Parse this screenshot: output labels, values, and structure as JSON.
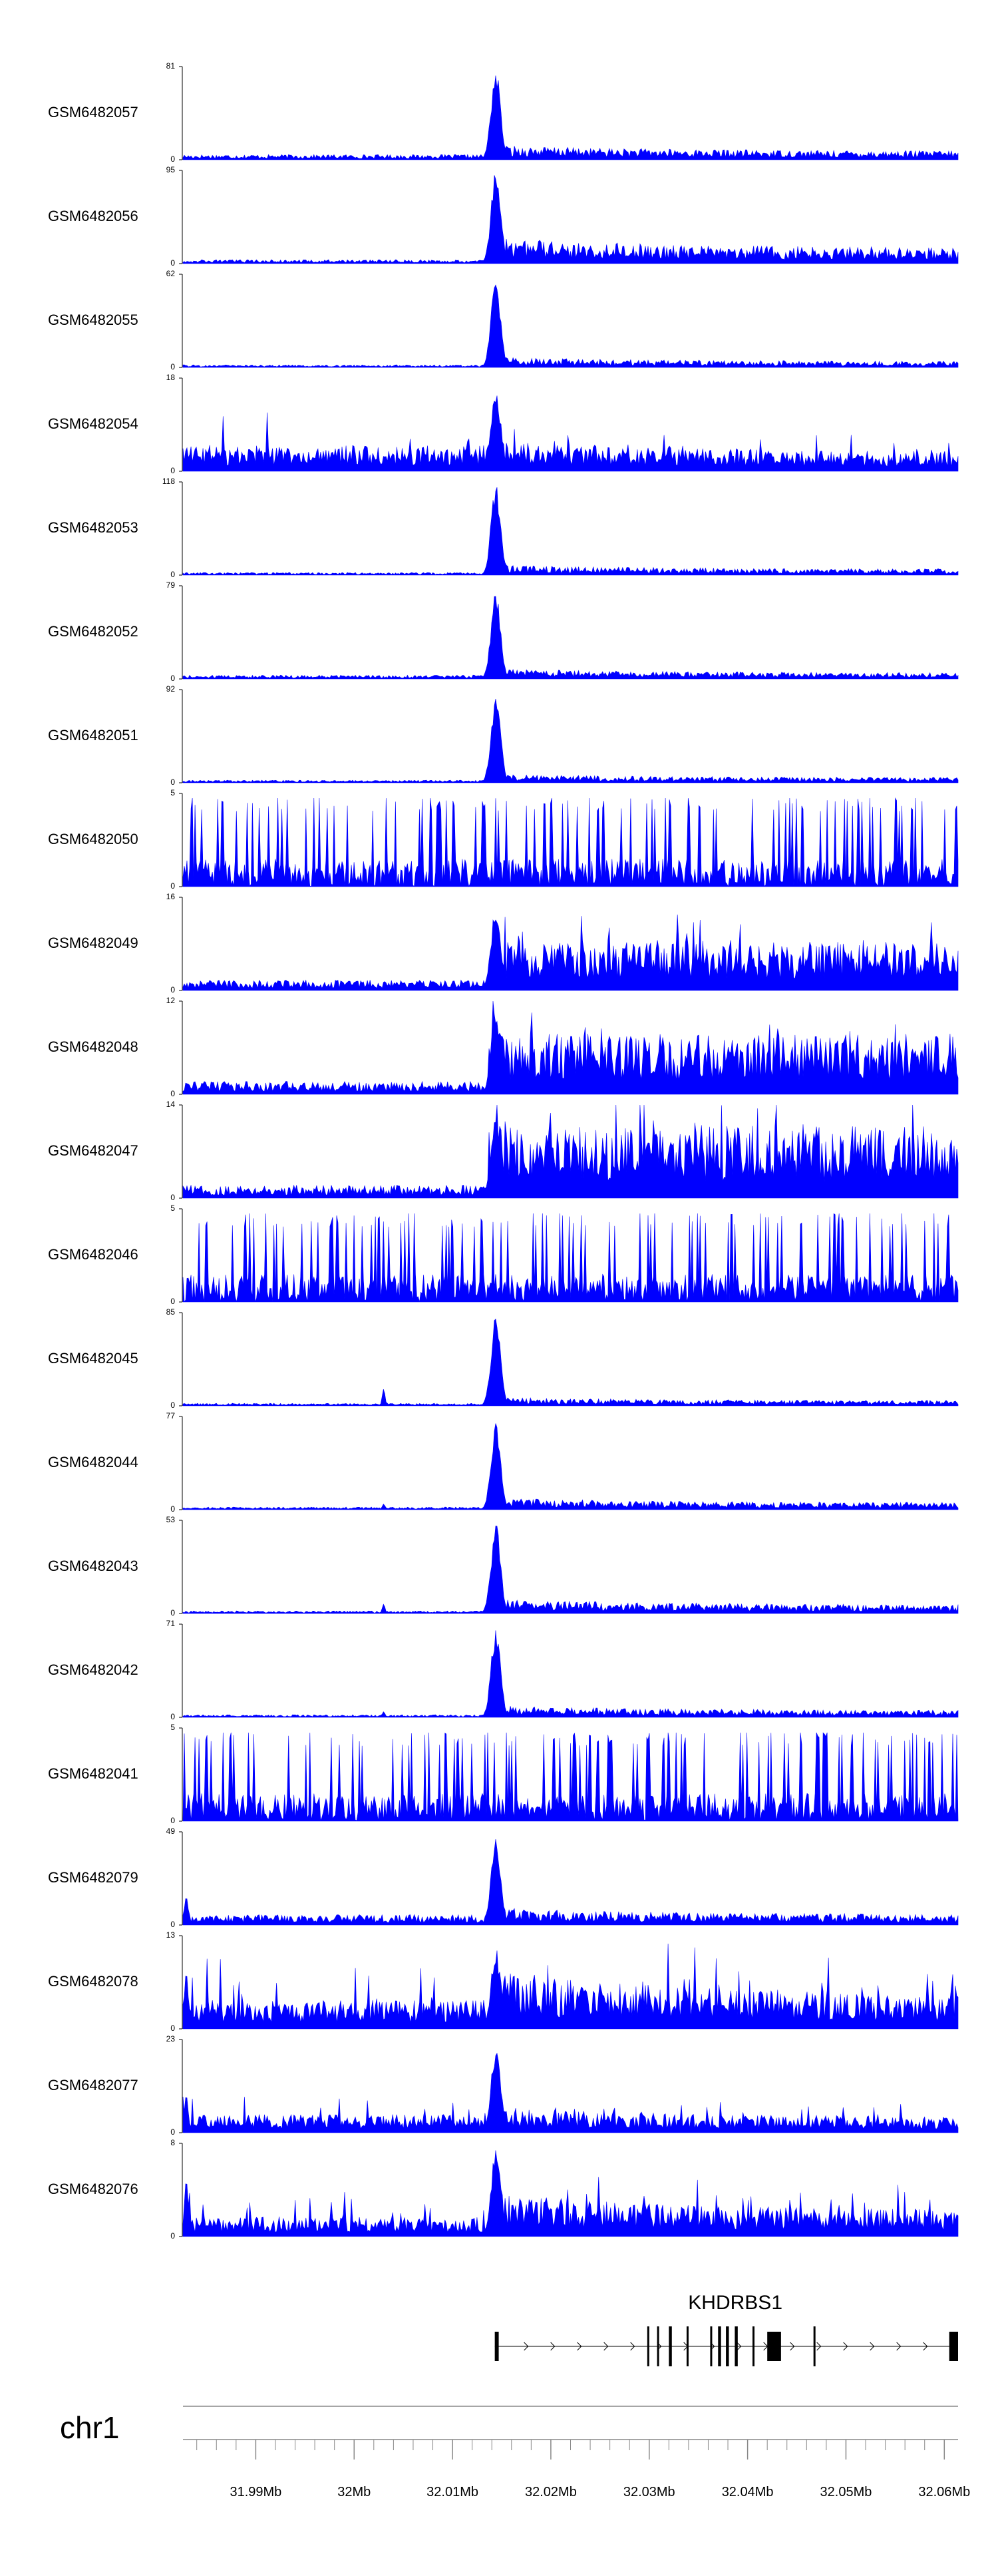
{
  "chart_data": {
    "type": "area",
    "region": {
      "chromosome": "chr1",
      "x_start_mb": 31.9826,
      "x_end_mb": 32.0614
    },
    "fill_color": "#0000ff",
    "tracks": [
      {
        "name": "GSM6482057",
        "ymax": 81,
        "ymin": 0,
        "profile": "peak",
        "peak_height": 1.0,
        "tail": 0.1,
        "upstream": 0.04
      },
      {
        "name": "GSM6482056",
        "ymax": 95,
        "ymin": 0,
        "profile": "peak",
        "peak_height": 1.0,
        "tail": 0.18,
        "upstream": 0.03
      },
      {
        "name": "GSM6482055",
        "ymax": 62,
        "ymin": 0,
        "profile": "peak",
        "peak_height": 0.97,
        "tail": 0.07,
        "upstream": 0.02
      },
      {
        "name": "GSM6482054",
        "ymax": 18,
        "ymin": 0,
        "profile": "noisy_peak",
        "peak_height": 0.95,
        "tail": 0.22,
        "upstream": 0.2
      },
      {
        "name": "GSM6482053",
        "ymax": 118,
        "ymin": 0,
        "profile": "peak",
        "peak_height": 0.98,
        "tail": 0.07,
        "upstream": 0.02
      },
      {
        "name": "GSM6482052",
        "ymax": 79,
        "ymin": 0,
        "profile": "peak",
        "peak_height": 0.96,
        "tail": 0.07,
        "upstream": 0.03
      },
      {
        "name": "GSM6482051",
        "ymax": 92,
        "ymin": 0,
        "profile": "peak",
        "peak_height": 0.97,
        "tail": 0.06,
        "upstream": 0.02
      },
      {
        "name": "GSM6482050",
        "ymax": 5,
        "ymin": 0,
        "profile": "noise",
        "peak_height": 0.9,
        "tail": 0.45,
        "upstream": 0.45
      },
      {
        "name": "GSM6482049",
        "ymax": 16,
        "ymin": 0,
        "profile": "step",
        "peak_height": 0.95,
        "tail": 0.35,
        "upstream": 0.08
      },
      {
        "name": "GSM6482048",
        "ymax": 12,
        "ymin": 0,
        "profile": "step",
        "peak_height": 0.95,
        "tail": 0.42,
        "upstream": 0.1
      },
      {
        "name": "GSM6482047",
        "ymax": 14,
        "ymin": 0,
        "profile": "step",
        "peak_height": 0.95,
        "tail": 0.5,
        "upstream": 0.1
      },
      {
        "name": "GSM6482046",
        "ymax": 5,
        "ymin": 0,
        "profile": "noise",
        "peak_height": 0.9,
        "tail": 0.45,
        "upstream": 0.45
      },
      {
        "name": "GSM6482045",
        "ymax": 85,
        "ymin": 0,
        "profile": "peak",
        "peak_height": 0.98,
        "tail": 0.06,
        "upstream": 0.02,
        "side_peak": 0.18
      },
      {
        "name": "GSM6482044",
        "ymax": 77,
        "ymin": 0,
        "profile": "peak",
        "peak_height": 0.97,
        "tail": 0.08,
        "upstream": 0.02,
        "side_peak": 0.06
      },
      {
        "name": "GSM6482043",
        "ymax": 53,
        "ymin": 0,
        "profile": "peak",
        "peak_height": 0.98,
        "tail": 0.1,
        "upstream": 0.02,
        "side_peak": 0.1
      },
      {
        "name": "GSM6482042",
        "ymax": 71,
        "ymin": 0,
        "profile": "peak",
        "peak_height": 0.97,
        "tail": 0.08,
        "upstream": 0.02,
        "side_peak": 0.06
      },
      {
        "name": "GSM6482041",
        "ymax": 5,
        "ymin": 0,
        "profile": "noise",
        "peak_height": 0.9,
        "tail": 0.45,
        "upstream": 0.45
      },
      {
        "name": "GSM6482079",
        "ymax": 49,
        "ymin": 0,
        "profile": "peak",
        "peak_height": 0.95,
        "tail": 0.12,
        "upstream": 0.08,
        "left_spike": 0.3
      },
      {
        "name": "GSM6482078",
        "ymax": 13,
        "ymin": 0,
        "profile": "noisy_peak",
        "peak_height": 0.9,
        "tail": 0.4,
        "upstream": 0.22,
        "left_spike": 0.6
      },
      {
        "name": "GSM6482077",
        "ymax": 23,
        "ymin": 0,
        "profile": "noisy_peak",
        "peak_height": 0.95,
        "tail": 0.18,
        "upstream": 0.14,
        "left_spike": 0.4
      },
      {
        "name": "GSM6482076",
        "ymax": 8,
        "ymin": 0,
        "profile": "noisy_peak",
        "peak_height": 0.95,
        "tail": 0.3,
        "upstream": 0.15,
        "left_spike": 0.6
      }
    ],
    "gene": {
      "name": "KHDRBS1",
      "strand": "+",
      "start_mb": 32.0143,
      "end_mb": 32.0614,
      "exons_mb": [
        [
          32.0143,
          32.0147
        ],
        [
          32.0298,
          32.03
        ],
        [
          32.0308,
          32.031
        ],
        [
          32.032,
          32.0323
        ],
        [
          32.0338,
          32.034
        ],
        [
          32.0362,
          32.0364
        ],
        [
          32.037,
          32.0373
        ],
        [
          32.0378,
          32.0381
        ],
        [
          32.0387,
          32.039
        ],
        [
          32.0405,
          32.0407
        ],
        [
          32.042,
          32.0434
        ],
        [
          32.0467,
          32.0469
        ],
        [
          32.0605,
          32.0614
        ]
      ]
    },
    "x_axis": {
      "chromosome_label": "chr1",
      "major_ticks": [
        {
          "value": 31.99,
          "label": "31.99Mb"
        },
        {
          "value": 32.0,
          "label": "32Mb"
        },
        {
          "value": 32.01,
          "label": "32.01Mb"
        },
        {
          "value": 32.02,
          "label": "32.02Mb"
        },
        {
          "value": 32.03,
          "label": "32.03Mb"
        },
        {
          "value": 32.04,
          "label": "32.04Mb"
        },
        {
          "value": 32.05,
          "label": "32.05Mb"
        },
        {
          "value": 32.06,
          "label": "32.06Mb"
        }
      ],
      "minor_tick_step_mb": 0.002
    }
  }
}
